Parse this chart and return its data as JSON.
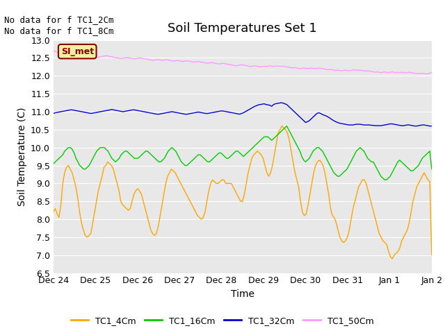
{
  "title": "Soil Temperatures Set 1",
  "xlabel": "Time",
  "ylabel": "Soil Temperature (C)",
  "no_data_text": [
    "No data for f TC1_2Cm",
    "No data for f TC1_8Cm"
  ],
  "SI_met_label": "SI_met",
  "ylim": [
    6.5,
    13.0
  ],
  "yticks": [
    6.5,
    7.0,
    7.5,
    8.0,
    8.5,
    9.0,
    9.5,
    10.0,
    10.5,
    11.0,
    11.5,
    12.0,
    12.5,
    13.0
  ],
  "xtick_labels": [
    "Dec 24",
    "Dec 25",
    "Dec 26",
    "Dec 27",
    "Dec 28",
    "Dec 29",
    "Dec 30",
    "Dec 31",
    "Jan 1",
    "Jan 2"
  ],
  "legend_entries": [
    "TC1_4Cm",
    "TC1_16Cm",
    "TC1_32Cm",
    "TC1_50Cm"
  ],
  "line_colors": [
    "#FFA500",
    "#00CC00",
    "#0000CC",
    "#FF99FF"
  ],
  "fig_facecolor": "#FFFFFF",
  "axes_facecolor": "#E8E8E8",
  "grid_color": "#FFFFFF",
  "title_fontsize": 13,
  "label_fontsize": 10,
  "tick_fontsize": 9,
  "legend_fontsize": 9,
  "nodata_fontsize": 9,
  "TC1_4Cm": [
    8.2,
    8.3,
    8.15,
    8.05,
    8.4,
    9.0,
    9.3,
    9.45,
    9.5,
    9.4,
    9.3,
    9.1,
    8.9,
    8.6,
    8.2,
    7.9,
    7.7,
    7.55,
    7.5,
    7.55,
    7.6,
    7.9,
    8.2,
    8.5,
    8.8,
    9.0,
    9.2,
    9.45,
    9.5,
    9.6,
    9.55,
    9.5,
    9.4,
    9.2,
    9.0,
    8.8,
    8.5,
    8.4,
    8.35,
    8.3,
    8.25,
    8.3,
    8.5,
    8.7,
    8.8,
    8.85,
    8.8,
    8.7,
    8.5,
    8.3,
    8.1,
    7.9,
    7.7,
    7.6,
    7.55,
    7.6,
    7.8,
    8.1,
    8.4,
    8.7,
    9.0,
    9.2,
    9.3,
    9.4,
    9.35,
    9.3,
    9.2,
    9.1,
    9.0,
    8.9,
    8.8,
    8.7,
    8.6,
    8.5,
    8.4,
    8.3,
    8.2,
    8.1,
    8.05,
    8.0,
    8.05,
    8.2,
    8.5,
    8.8,
    9.0,
    9.1,
    9.05,
    9.0,
    9.0,
    9.05,
    9.1,
    9.1,
    9.0,
    9.0,
    9.0,
    9.0,
    8.9,
    8.8,
    8.7,
    8.6,
    8.5,
    8.5,
    8.7,
    9.0,
    9.3,
    9.5,
    9.7,
    9.8,
    9.85,
    9.9,
    9.85,
    9.8,
    9.7,
    9.5,
    9.3,
    9.2,
    9.3,
    9.5,
    9.8,
    10.1,
    10.4,
    10.5,
    10.6,
    10.55,
    10.5,
    10.4,
    10.2,
    9.9,
    9.6,
    9.3,
    9.1,
    8.9,
    8.5,
    8.2,
    8.1,
    8.15,
    8.4,
    8.7,
    9.0,
    9.3,
    9.5,
    9.6,
    9.65,
    9.6,
    9.5,
    9.3,
    9.0,
    8.7,
    8.3,
    8.1,
    8.05,
    7.9,
    7.7,
    7.5,
    7.4,
    7.35,
    7.4,
    7.5,
    7.7,
    8.0,
    8.3,
    8.5,
    8.7,
    8.9,
    9.0,
    9.1,
    9.1,
    9.0,
    8.8,
    8.6,
    8.4,
    8.2,
    8.0,
    7.8,
    7.6,
    7.5,
    7.4,
    7.35,
    7.3,
    7.1,
    6.95,
    6.9,
    7.0,
    7.05,
    7.1,
    7.2,
    7.4,
    7.5,
    7.6,
    7.7,
    7.9,
    8.2,
    8.5,
    8.7,
    8.9,
    9.0,
    9.1,
    9.2,
    9.3,
    9.2,
    9.1,
    9.05,
    7.0
  ],
  "TC1_16Cm": [
    9.55,
    9.6,
    9.65,
    9.7,
    9.75,
    9.8,
    9.9,
    9.95,
    10.0,
    10.0,
    9.95,
    9.85,
    9.7,
    9.6,
    9.5,
    9.45,
    9.4,
    9.4,
    9.45,
    9.5,
    9.6,
    9.7,
    9.8,
    9.9,
    9.95,
    10.0,
    10.0,
    10.0,
    9.95,
    9.9,
    9.8,
    9.7,
    9.65,
    9.6,
    9.65,
    9.7,
    9.8,
    9.85,
    9.9,
    9.9,
    9.85,
    9.8,
    9.75,
    9.7,
    9.7,
    9.7,
    9.75,
    9.8,
    9.85,
    9.9,
    9.9,
    9.85,
    9.8,
    9.75,
    9.7,
    9.65,
    9.6,
    9.6,
    9.65,
    9.7,
    9.8,
    9.9,
    9.95,
    10.0,
    9.95,
    9.9,
    9.8,
    9.7,
    9.6,
    9.55,
    9.5,
    9.5,
    9.55,
    9.6,
    9.65,
    9.7,
    9.75,
    9.8,
    9.8,
    9.75,
    9.7,
    9.65,
    9.6,
    9.6,
    9.65,
    9.7,
    9.75,
    9.8,
    9.85,
    9.85,
    9.8,
    9.75,
    9.7,
    9.7,
    9.75,
    9.8,
    9.85,
    9.9,
    9.9,
    9.85,
    9.8,
    9.75,
    9.8,
    9.85,
    9.9,
    9.95,
    10.0,
    10.05,
    10.1,
    10.15,
    10.2,
    10.25,
    10.3,
    10.3,
    10.3,
    10.25,
    10.2,
    10.25,
    10.3,
    10.35,
    10.4,
    10.45,
    10.5,
    10.55,
    10.6,
    10.5,
    10.4,
    10.3,
    10.2,
    10.1,
    10.0,
    9.9,
    9.75,
    9.65,
    9.6,
    9.65,
    9.7,
    9.8,
    9.9,
    9.95,
    10.0,
    10.0,
    9.95,
    9.9,
    9.8,
    9.7,
    9.6,
    9.5,
    9.4,
    9.3,
    9.25,
    9.2,
    9.2,
    9.25,
    9.3,
    9.35,
    9.4,
    9.5,
    9.6,
    9.7,
    9.8,
    9.9,
    9.95,
    10.0,
    9.95,
    9.9,
    9.8,
    9.7,
    9.65,
    9.6,
    9.6,
    9.5,
    9.4,
    9.3,
    9.2,
    9.15,
    9.1,
    9.1,
    9.15,
    9.2,
    9.3,
    9.4,
    9.5,
    9.6,
    9.65,
    9.6,
    9.55,
    9.5,
    9.45,
    9.4,
    9.35,
    9.35,
    9.4,
    9.45,
    9.5,
    9.6,
    9.7,
    9.75,
    9.8,
    9.85,
    9.9,
    9.4
  ],
  "TC1_32Cm": [
    10.95,
    10.97,
    10.98,
    10.99,
    11.0,
    11.01,
    11.02,
    11.03,
    11.04,
    11.05,
    11.05,
    11.04,
    11.03,
    11.02,
    11.01,
    11.0,
    10.99,
    10.98,
    10.97,
    10.96,
    10.95,
    10.96,
    10.97,
    10.98,
    10.99,
    11.0,
    11.01,
    11.02,
    11.03,
    11.04,
    11.05,
    11.06,
    11.05,
    11.04,
    11.03,
    11.02,
    11.01,
    11.0,
    11.01,
    11.02,
    11.03,
    11.04,
    11.05,
    11.05,
    11.04,
    11.03,
    11.02,
    11.01,
    11.0,
    10.99,
    10.98,
    10.97,
    10.96,
    10.95,
    10.94,
    10.93,
    10.93,
    10.94,
    10.95,
    10.96,
    10.97,
    10.98,
    10.99,
    11.0,
    10.99,
    10.98,
    10.97,
    10.96,
    10.95,
    10.94,
    10.93,
    10.93,
    10.94,
    10.95,
    10.96,
    10.97,
    10.98,
    10.99,
    10.98,
    10.97,
    10.96,
    10.95,
    10.95,
    10.96,
    10.97,
    10.98,
    10.99,
    11.0,
    11.01,
    11.02,
    11.02,
    11.01,
    11.0,
    10.99,
    10.98,
    10.97,
    10.96,
    10.95,
    10.94,
    10.93,
    10.95,
    10.97,
    11.0,
    11.03,
    11.06,
    11.09,
    11.12,
    11.15,
    11.17,
    11.19,
    11.2,
    11.21,
    11.22,
    11.2,
    11.19,
    11.18,
    11.15,
    11.2,
    11.22,
    11.23,
    11.24,
    11.25,
    11.24,
    11.22,
    11.2,
    11.15,
    11.1,
    11.05,
    11.0,
    10.95,
    10.9,
    10.85,
    10.8,
    10.75,
    10.7,
    10.72,
    10.75,
    10.8,
    10.85,
    10.9,
    10.95,
    10.97,
    10.95,
    10.92,
    10.9,
    10.88,
    10.85,
    10.82,
    10.78,
    10.75,
    10.72,
    10.7,
    10.68,
    10.67,
    10.66,
    10.65,
    10.64,
    10.63,
    10.63,
    10.63,
    10.64,
    10.65,
    10.65,
    10.65,
    10.64,
    10.63,
    10.63,
    10.63,
    10.63,
    10.62,
    10.62,
    10.61,
    10.61,
    10.61,
    10.61,
    10.62,
    10.63,
    10.64,
    10.65,
    10.66,
    10.66,
    10.65,
    10.64,
    10.63,
    10.62,
    10.61,
    10.61,
    10.62,
    10.63,
    10.63,
    10.62,
    10.61,
    10.6,
    10.6,
    10.61,
    10.62,
    10.63,
    10.63,
    10.62,
    10.61,
    10.6,
    10.6
  ],
  "TC1_50Cm": [
    12.7,
    12.68,
    12.66,
    12.65,
    12.64,
    12.63,
    12.62,
    12.61,
    12.6,
    12.59,
    12.58,
    12.57,
    12.56,
    12.56,
    12.57,
    12.58,
    12.58,
    12.57,
    12.56,
    12.55,
    12.54,
    12.53,
    12.52,
    12.51,
    12.52,
    12.53,
    12.54,
    12.55,
    12.56,
    12.55,
    12.54,
    12.53,
    12.52,
    12.51,
    12.5,
    12.49,
    12.48,
    12.49,
    12.5,
    12.51,
    12.5,
    12.49,
    12.48,
    12.47,
    12.48,
    12.49,
    12.5,
    12.49,
    12.48,
    12.47,
    12.46,
    12.45,
    12.44,
    12.43,
    12.44,
    12.45,
    12.45,
    12.44,
    12.43,
    12.44,
    12.45,
    12.44,
    12.43,
    12.42,
    12.41,
    12.42,
    12.43,
    12.42,
    12.41,
    12.4,
    12.41,
    12.42,
    12.41,
    12.4,
    12.39,
    12.38,
    12.39,
    12.4,
    12.39,
    12.38,
    12.37,
    12.36,
    12.35,
    12.36,
    12.37,
    12.36,
    12.35,
    12.34,
    12.33,
    12.34,
    12.35,
    12.34,
    12.33,
    12.32,
    12.31,
    12.3,
    12.29,
    12.28,
    12.29,
    12.3,
    12.31,
    12.3,
    12.29,
    12.28,
    12.27,
    12.26,
    12.27,
    12.28,
    12.27,
    12.26,
    12.25,
    12.26,
    12.27,
    12.26,
    12.27,
    12.28,
    12.27,
    12.26,
    12.27,
    12.28,
    12.27,
    12.26,
    12.27,
    12.26,
    12.25,
    12.24,
    12.23,
    12.22,
    12.23,
    12.22,
    12.21,
    12.2,
    12.21,
    12.22,
    12.21,
    12.2,
    12.21,
    12.22,
    12.21,
    12.2,
    12.21,
    12.22,
    12.21,
    12.2,
    12.19,
    12.18,
    12.17,
    12.18,
    12.17,
    12.16,
    12.15,
    12.16,
    12.15,
    12.14,
    12.15,
    12.16,
    12.15,
    12.14,
    12.15,
    12.16,
    12.17,
    12.16,
    12.15,
    12.16,
    12.15,
    12.14,
    12.13,
    12.14,
    12.13,
    12.12,
    12.11,
    12.1,
    12.11,
    12.1,
    12.09,
    12.1,
    12.11,
    12.1,
    12.09,
    12.1,
    12.11,
    12.1,
    12.09,
    12.1,
    12.09,
    12.1,
    12.09,
    12.08,
    12.09,
    12.1,
    12.09,
    12.08,
    12.07,
    12.06,
    12.07,
    12.06,
    12.07,
    12.06,
    12.05,
    12.06,
    12.07,
    12.1
  ]
}
